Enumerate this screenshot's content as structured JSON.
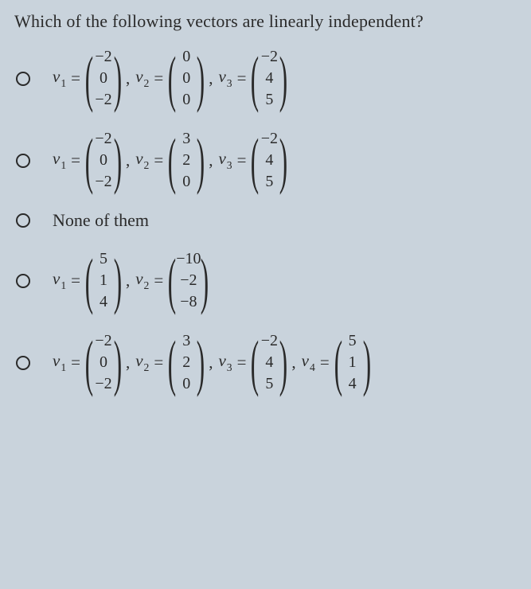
{
  "question": "Which of the following vectors are linearly independent?",
  "options": [
    {
      "type": "vectors",
      "vectors": [
        {
          "label": "v",
          "sub": "1",
          "values": [
            "−2",
            "0",
            "−2"
          ]
        },
        {
          "label": "v",
          "sub": "2",
          "values": [
            "0",
            "0",
            "0"
          ]
        },
        {
          "label": "v",
          "sub": "3",
          "values": [
            "−2",
            "4",
            "5"
          ]
        }
      ]
    },
    {
      "type": "vectors",
      "vectors": [
        {
          "label": "v",
          "sub": "1",
          "values": [
            "−2",
            "0",
            "−2"
          ]
        },
        {
          "label": "v",
          "sub": "2",
          "values": [
            "3",
            "2",
            "0"
          ]
        },
        {
          "label": "v",
          "sub": "3",
          "values": [
            "−2",
            "4",
            "5"
          ]
        }
      ]
    },
    {
      "type": "text",
      "text": "None of them"
    },
    {
      "type": "vectors",
      "vectors": [
        {
          "label": "v",
          "sub": "1",
          "values": [
            "5",
            "1",
            "4"
          ]
        },
        {
          "label": "v",
          "sub": "2",
          "values": [
            "−10",
            "−2",
            "−8"
          ]
        }
      ]
    },
    {
      "type": "vectors",
      "vectors": [
        {
          "label": "v",
          "sub": "1",
          "values": [
            "−2",
            "0",
            "−2"
          ]
        },
        {
          "label": "v",
          "sub": "2",
          "values": [
            "3",
            "2",
            "0"
          ]
        },
        {
          "label": "v",
          "sub": "3",
          "values": [
            "−2",
            "4",
            "5"
          ]
        },
        {
          "label": "v",
          "sub": "4",
          "values": [
            "5",
            "1",
            "4"
          ]
        }
      ]
    }
  ],
  "colors": {
    "background": "#c9d3dc",
    "text": "#2a2a2a"
  }
}
